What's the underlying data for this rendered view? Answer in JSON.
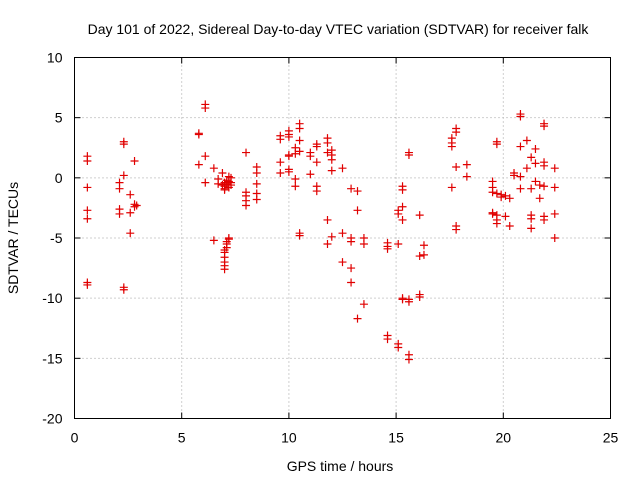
{
  "chart_data": {
    "type": "scatter",
    "title": "Day 101 of 2022, Sidereal Day-to-day VTEC variation (SDTVAR) for receiver falk",
    "xlabel": "GPS time / hours",
    "ylabel": "SDTVAR / TECUs",
    "xlim": [
      0,
      25
    ],
    "ylim": [
      -20,
      10
    ],
    "xticks": [
      0,
      5,
      10,
      15,
      20,
      25
    ],
    "yticks": [
      -20,
      -15,
      -10,
      -5,
      0,
      5,
      10
    ],
    "grid": true,
    "marker": "+",
    "color": "#e00000",
    "series": [
      {
        "name": "SDTVAR",
        "points": [
          [
            0.6,
            1.8
          ],
          [
            0.6,
            1.4
          ],
          [
            0.6,
            -0.8
          ],
          [
            0.6,
            -2.7
          ],
          [
            0.6,
            -3.4
          ],
          [
            0.6,
            -8.7
          ],
          [
            0.6,
            -8.9
          ],
          [
            2.1,
            -0.4
          ],
          [
            2.1,
            -0.9
          ],
          [
            2.1,
            -2.6
          ],
          [
            2.1,
            -3.0
          ],
          [
            2.3,
            0.2
          ],
          [
            2.3,
            3.0
          ],
          [
            2.3,
            2.8
          ],
          [
            2.3,
            -9.1
          ],
          [
            2.3,
            -9.3
          ],
          [
            2.6,
            -1.4
          ],
          [
            2.6,
            -2.9
          ],
          [
            2.6,
            -4.6
          ],
          [
            2.8,
            1.4
          ],
          [
            2.8,
            -2.2
          ],
          [
            2.8,
            -2.4
          ],
          [
            2.9,
            -2.3
          ],
          [
            5.8,
            3.7
          ],
          [
            5.8,
            3.6
          ],
          [
            5.8,
            1.1
          ],
          [
            6.1,
            6.1
          ],
          [
            6.1,
            5.8
          ],
          [
            6.1,
            1.8
          ],
          [
            6.1,
            -0.4
          ],
          [
            6.5,
            0.8
          ],
          [
            6.5,
            -5.2
          ],
          [
            6.7,
            -0.1
          ],
          [
            6.7,
            -0.5
          ],
          [
            6.9,
            0.4
          ],
          [
            6.9,
            -0.6
          ],
          [
            7.0,
            -0.4
          ],
          [
            7.0,
            -0.7
          ],
          [
            7.0,
            -0.9
          ],
          [
            7.0,
            -1.0
          ],
          [
            7.0,
            -7.6
          ],
          [
            7.0,
            -7.3
          ],
          [
            7.0,
            -7.0
          ],
          [
            7.0,
            -6.6
          ],
          [
            7.0,
            -6.2
          ],
          [
            7.0,
            -6.0
          ],
          [
            7.1,
            -0.2
          ],
          [
            7.1,
            -0.5
          ],
          [
            7.1,
            -5.8
          ],
          [
            7.1,
            -5.5
          ],
          [
            7.1,
            -5.3
          ],
          [
            7.2,
            0.1
          ],
          [
            7.2,
            -0.3
          ],
          [
            7.2,
            -0.8
          ],
          [
            7.2,
            -5.1
          ],
          [
            7.2,
            -5.0
          ],
          [
            7.3,
            0.0
          ],
          [
            7.3,
            -0.4
          ],
          [
            7.3,
            -0.6
          ],
          [
            8.0,
            2.1
          ],
          [
            8.0,
            -1.2
          ],
          [
            8.0,
            -1.5
          ],
          [
            8.0,
            -1.9
          ],
          [
            8.0,
            -2.3
          ],
          [
            8.5,
            0.9
          ],
          [
            8.5,
            0.4
          ],
          [
            8.5,
            -0.5
          ],
          [
            8.5,
            -1.3
          ],
          [
            8.5,
            -1.8
          ],
          [
            9.6,
            3.5
          ],
          [
            9.6,
            3.2
          ],
          [
            9.6,
            1.3
          ],
          [
            9.6,
            0.4
          ],
          [
            10.0,
            3.9
          ],
          [
            10.0,
            3.6
          ],
          [
            10.0,
            3.4
          ],
          [
            10.0,
            1.9
          ],
          [
            10.0,
            1.8
          ],
          [
            10.0,
            0.7
          ],
          [
            10.0,
            0.5
          ],
          [
            10.3,
            2.5
          ],
          [
            10.3,
            2.0
          ],
          [
            10.3,
            -0.1
          ],
          [
            10.3,
            -0.7
          ],
          [
            10.5,
            4.5
          ],
          [
            10.5,
            4.1
          ],
          [
            10.5,
            3.1
          ],
          [
            10.5,
            2.2
          ],
          [
            10.5,
            -4.6
          ],
          [
            10.5,
            -4.8
          ],
          [
            11.0,
            2.1
          ],
          [
            11.0,
            1.8
          ],
          [
            11.0,
            0.3
          ],
          [
            11.3,
            2.8
          ],
          [
            11.3,
            2.6
          ],
          [
            11.3,
            1.3
          ],
          [
            11.3,
            -0.7
          ],
          [
            11.3,
            -1.1
          ],
          [
            11.8,
            3.3
          ],
          [
            11.8,
            2.9
          ],
          [
            11.8,
            2.1
          ],
          [
            11.8,
            -3.5
          ],
          [
            11.8,
            -5.5
          ],
          [
            12.0,
            2.3
          ],
          [
            12.0,
            1.9
          ],
          [
            12.0,
            1.5
          ],
          [
            12.0,
            0.6
          ],
          [
            12.0,
            -4.9
          ],
          [
            12.5,
            0.8
          ],
          [
            12.5,
            -4.6
          ],
          [
            12.5,
            -7.0
          ],
          [
            12.9,
            -0.9
          ],
          [
            12.9,
            -5.0
          ],
          [
            12.9,
            -5.3
          ],
          [
            12.9,
            -7.5
          ],
          [
            12.9,
            -8.7
          ],
          [
            13.2,
            -1.1
          ],
          [
            13.2,
            -2.7
          ],
          [
            13.2,
            -11.7
          ],
          [
            13.5,
            -5.0
          ],
          [
            13.5,
            -5.5
          ],
          [
            13.5,
            -10.5
          ],
          [
            14.6,
            -5.4
          ],
          [
            14.6,
            -5.7
          ],
          [
            14.6,
            -5.9
          ],
          [
            14.6,
            -13.1
          ],
          [
            14.6,
            -13.4
          ],
          [
            15.1,
            -2.7
          ],
          [
            15.1,
            -3.0
          ],
          [
            15.1,
            -5.5
          ],
          [
            15.1,
            -13.8
          ],
          [
            15.1,
            -14.1
          ],
          [
            15.3,
            -0.7
          ],
          [
            15.3,
            -1.0
          ],
          [
            15.3,
            -2.4
          ],
          [
            15.3,
            -3.5
          ],
          [
            15.3,
            -10.0
          ],
          [
            15.3,
            -10.1
          ],
          [
            15.6,
            2.1
          ],
          [
            15.6,
            1.9
          ],
          [
            15.6,
            -10.1
          ],
          [
            15.6,
            -10.3
          ],
          [
            15.6,
            -14.7
          ],
          [
            15.6,
            -15.1
          ],
          [
            16.1,
            -3.1
          ],
          [
            16.1,
            -6.5
          ],
          [
            16.1,
            -9.7
          ],
          [
            16.1,
            -9.9
          ],
          [
            16.3,
            -5.6
          ],
          [
            16.3,
            -6.4
          ],
          [
            17.6,
            3.3
          ],
          [
            17.6,
            2.9
          ],
          [
            17.6,
            2.6
          ],
          [
            17.6,
            -0.8
          ],
          [
            17.8,
            4.1
          ],
          [
            17.8,
            3.8
          ],
          [
            17.8,
            0.9
          ],
          [
            17.8,
            -4.0
          ],
          [
            17.8,
            -4.3
          ],
          [
            18.3,
            1.1
          ],
          [
            18.3,
            0.1
          ],
          [
            19.5,
            -0.3
          ],
          [
            19.5,
            -0.8
          ],
          [
            19.5,
            -1.2
          ],
          [
            19.5,
            -2.9
          ],
          [
            19.5,
            -3.0
          ],
          [
            19.7,
            3.0
          ],
          [
            19.7,
            2.8
          ],
          [
            19.7,
            -1.3
          ],
          [
            19.7,
            -3.1
          ],
          [
            19.7,
            -3.5
          ],
          [
            19.7,
            -3.8
          ],
          [
            19.9,
            -1.4
          ],
          [
            19.9,
            -1.6
          ],
          [
            20.1,
            -1.5
          ],
          [
            20.1,
            -3.2
          ],
          [
            20.3,
            -1.7
          ],
          [
            20.3,
            -4.0
          ],
          [
            20.5,
            0.4
          ],
          [
            20.5,
            0.2
          ],
          [
            20.8,
            5.3
          ],
          [
            20.8,
            5.1
          ],
          [
            20.8,
            2.6
          ],
          [
            20.8,
            0.1
          ],
          [
            20.8,
            -0.9
          ],
          [
            21.1,
            3.1
          ],
          [
            21.1,
            0.8
          ],
          [
            21.3,
            1.7
          ],
          [
            21.3,
            -0.9
          ],
          [
            21.3,
            -3.1
          ],
          [
            21.3,
            -3.4
          ],
          [
            21.3,
            -4.2
          ],
          [
            21.5,
            2.4
          ],
          [
            21.5,
            1.2
          ],
          [
            21.5,
            -0.3
          ],
          [
            21.7,
            -0.6
          ],
          [
            21.7,
            -1.7
          ],
          [
            21.9,
            4.5
          ],
          [
            21.9,
            4.3
          ],
          [
            21.9,
            1.3
          ],
          [
            21.9,
            1.0
          ],
          [
            21.9,
            -0.7
          ],
          [
            21.9,
            -3.2
          ],
          [
            21.9,
            -3.5
          ],
          [
            22.4,
            0.8
          ],
          [
            22.4,
            -0.8
          ],
          [
            22.4,
            -3.0
          ],
          [
            22.4,
            -5.0
          ]
        ]
      }
    ]
  }
}
